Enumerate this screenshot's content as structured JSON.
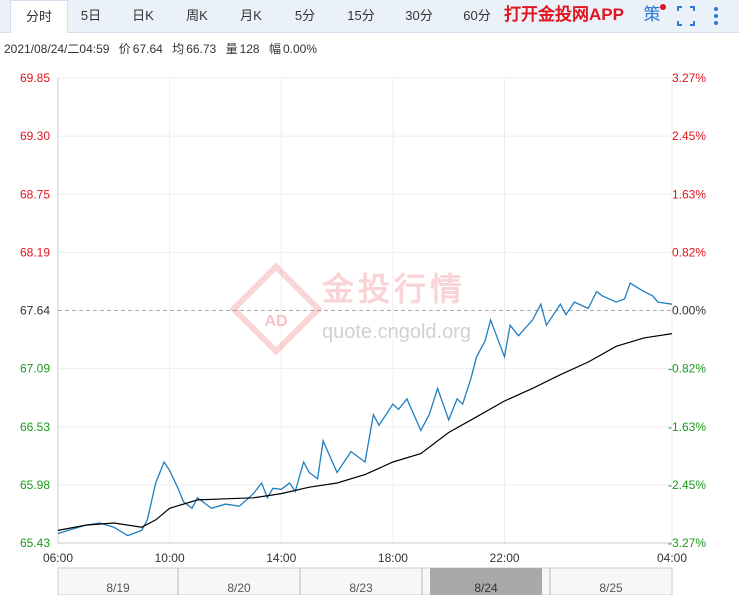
{
  "tabs": [
    {
      "label": "分时",
      "active": true
    },
    {
      "label": "5日",
      "active": false
    },
    {
      "label": "日K",
      "active": false
    },
    {
      "label": "周K",
      "active": false
    },
    {
      "label": "月K",
      "active": false
    },
    {
      "label": "5分",
      "active": false
    },
    {
      "label": "15分",
      "active": false
    },
    {
      "label": "30分",
      "active": false
    },
    {
      "label": "60分",
      "active": false
    }
  ],
  "app_link": "打开金投网APP",
  "tools": {
    "strategy": "策",
    "fullscreen_icon": "fullscreen-icon",
    "more_icon": "more-vertical-icon"
  },
  "info": {
    "datetime": "2021/08/24/二04:59",
    "price_label": "价",
    "price": "67.64",
    "avg_label": "均",
    "avg": "66.73",
    "vol_label": "量",
    "vol": "128",
    "chg_label": "幅",
    "chg": "0.00%"
  },
  "watermark": {
    "brand": "金投行情",
    "url": "quote.cngold.org",
    "logo_text": "AD"
  },
  "colors": {
    "up": "#e0141e",
    "down": "#1a9a1a",
    "neutral": "#333333",
    "price_line": "#1f7fc0",
    "avg_line": "#000000"
  },
  "chart_data": {
    "type": "line",
    "prev_close": 67.64,
    "ylim": [
      65.43,
      69.85
    ],
    "y_ticks": [
      "69.85",
      "69.30",
      "68.75",
      "68.19",
      "67.64",
      "67.09",
      "66.53",
      "65.98",
      "65.43"
    ],
    "pct_ticks": [
      "3.27%",
      "2.45%",
      "1.63%",
      "0.82%",
      "0.00%",
      "-0.82%",
      "-1.63%",
      "-2.45%",
      "-3.27%"
    ],
    "x_ticks": [
      "06:00",
      "10:00",
      "14:00",
      "18:00",
      "22:00",
      "04:00"
    ],
    "x_range_hours": [
      0,
      22
    ],
    "series": [
      {
        "name": "价",
        "x": [
          0,
          0.5,
          1,
          1.5,
          2,
          2.5,
          3,
          3.2,
          3.5,
          3.8,
          4,
          4.3,
          4.5,
          4.8,
          5,
          5.3,
          5.5,
          6,
          6.5,
          7,
          7.3,
          7.5,
          7.7,
          8,
          8.3,
          8.5,
          8.8,
          9,
          9.3,
          9.5,
          10,
          10.5,
          11,
          11.3,
          11.5,
          12,
          12.2,
          12.5,
          13,
          13.3,
          13.6,
          14,
          14.3,
          14.5,
          14.8,
          15,
          15.3,
          15.5,
          16,
          16.2,
          16.5,
          17,
          17.3,
          17.5,
          18,
          18.2,
          18.5,
          19,
          19.3,
          19.5,
          20,
          20.3,
          20.5,
          21,
          21.3,
          21.5,
          22
        ],
        "values": [
          65.52,
          65.56,
          65.6,
          65.62,
          65.58,
          65.5,
          65.55,
          65.65,
          66.0,
          66.2,
          66.12,
          65.95,
          65.82,
          65.76,
          65.86,
          65.8,
          65.76,
          65.8,
          65.78,
          65.9,
          66.0,
          65.86,
          65.95,
          65.94,
          66.0,
          65.92,
          66.2,
          66.1,
          66.04,
          66.4,
          66.1,
          66.3,
          66.2,
          66.65,
          66.55,
          66.75,
          66.7,
          66.8,
          66.5,
          66.65,
          66.9,
          66.6,
          66.8,
          66.75,
          67.0,
          67.2,
          67.35,
          67.55,
          67.2,
          67.5,
          67.4,
          67.55,
          67.7,
          67.5,
          67.7,
          67.6,
          67.72,
          67.66,
          67.82,
          67.78,
          67.72,
          67.75,
          67.9,
          67.82,
          67.78,
          67.72,
          67.7
        ]
      },
      {
        "name": "均",
        "x": [
          0,
          1,
          2,
          3,
          3.5,
          4,
          5,
          6,
          7,
          8,
          9,
          10,
          11,
          12,
          13,
          14,
          15,
          16,
          17,
          18,
          19,
          20,
          21,
          22
        ],
        "values": [
          65.55,
          65.6,
          65.62,
          65.58,
          65.65,
          65.76,
          65.84,
          65.85,
          65.86,
          65.9,
          65.96,
          66.0,
          66.08,
          66.2,
          66.28,
          66.48,
          66.63,
          66.78,
          66.9,
          67.03,
          67.15,
          67.3,
          67.38,
          67.42
        ]
      }
    ]
  },
  "navigator": {
    "labels": [
      "8/19",
      "8/20",
      "8/23",
      "8/24",
      "8/25"
    ],
    "selected": "8/24"
  }
}
